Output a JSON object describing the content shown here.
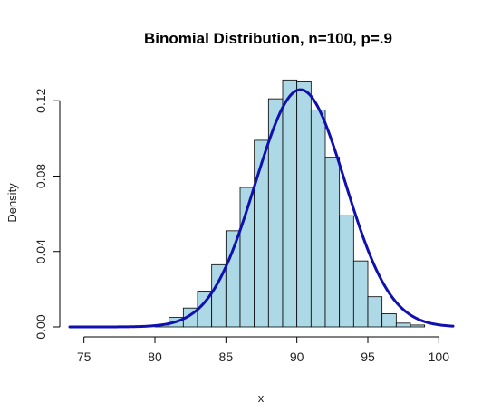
{
  "chart_data": {
    "type": "bar",
    "title": "Binomial Distribution, n=100, p=.9",
    "xlabel": "x",
    "ylabel": "Density",
    "xlim": [
      74,
      101
    ],
    "ylim": [
      0,
      0.135
    ],
    "x_ticks": [
      75,
      80,
      85,
      90,
      95,
      100
    ],
    "y_ticks": [
      0.0,
      0.04,
      0.08,
      0.12
    ],
    "y_tick_labels": [
      "0.00",
      "0.04",
      "0.08",
      "0.12"
    ],
    "grid": false,
    "legend": "none",
    "histogram": {
      "bin_width": 1,
      "bins": [
        {
          "left": 80,
          "density": 0.001
        },
        {
          "left": 81,
          "density": 0.005
        },
        {
          "left": 82,
          "density": 0.01
        },
        {
          "left": 83,
          "density": 0.019
        },
        {
          "left": 84,
          "density": 0.033
        },
        {
          "left": 85,
          "density": 0.051
        },
        {
          "left": 86,
          "density": 0.074
        },
        {
          "left": 87,
          "density": 0.099
        },
        {
          "left": 88,
          "density": 0.121
        },
        {
          "left": 89,
          "density": 0.131
        },
        {
          "left": 90,
          "density": 0.13
        },
        {
          "left": 91,
          "density": 0.115
        },
        {
          "left": 92,
          "density": 0.09
        },
        {
          "left": 93,
          "density": 0.059
        },
        {
          "left": 94,
          "density": 0.035
        },
        {
          "left": 95,
          "density": 0.016
        },
        {
          "left": 96,
          "density": 0.007
        },
        {
          "left": 97,
          "density": 0.002
        },
        {
          "left": 98,
          "density": 0.001
        }
      ]
    },
    "curve": {
      "type": "normal-density",
      "mean": 90.25,
      "sd": 3.17,
      "x_range": [
        74,
        101
      ]
    },
    "colors": {
      "bar_fill": "#add8e6",
      "bar_stroke": "#000000",
      "curve": "#1010b0"
    }
  }
}
